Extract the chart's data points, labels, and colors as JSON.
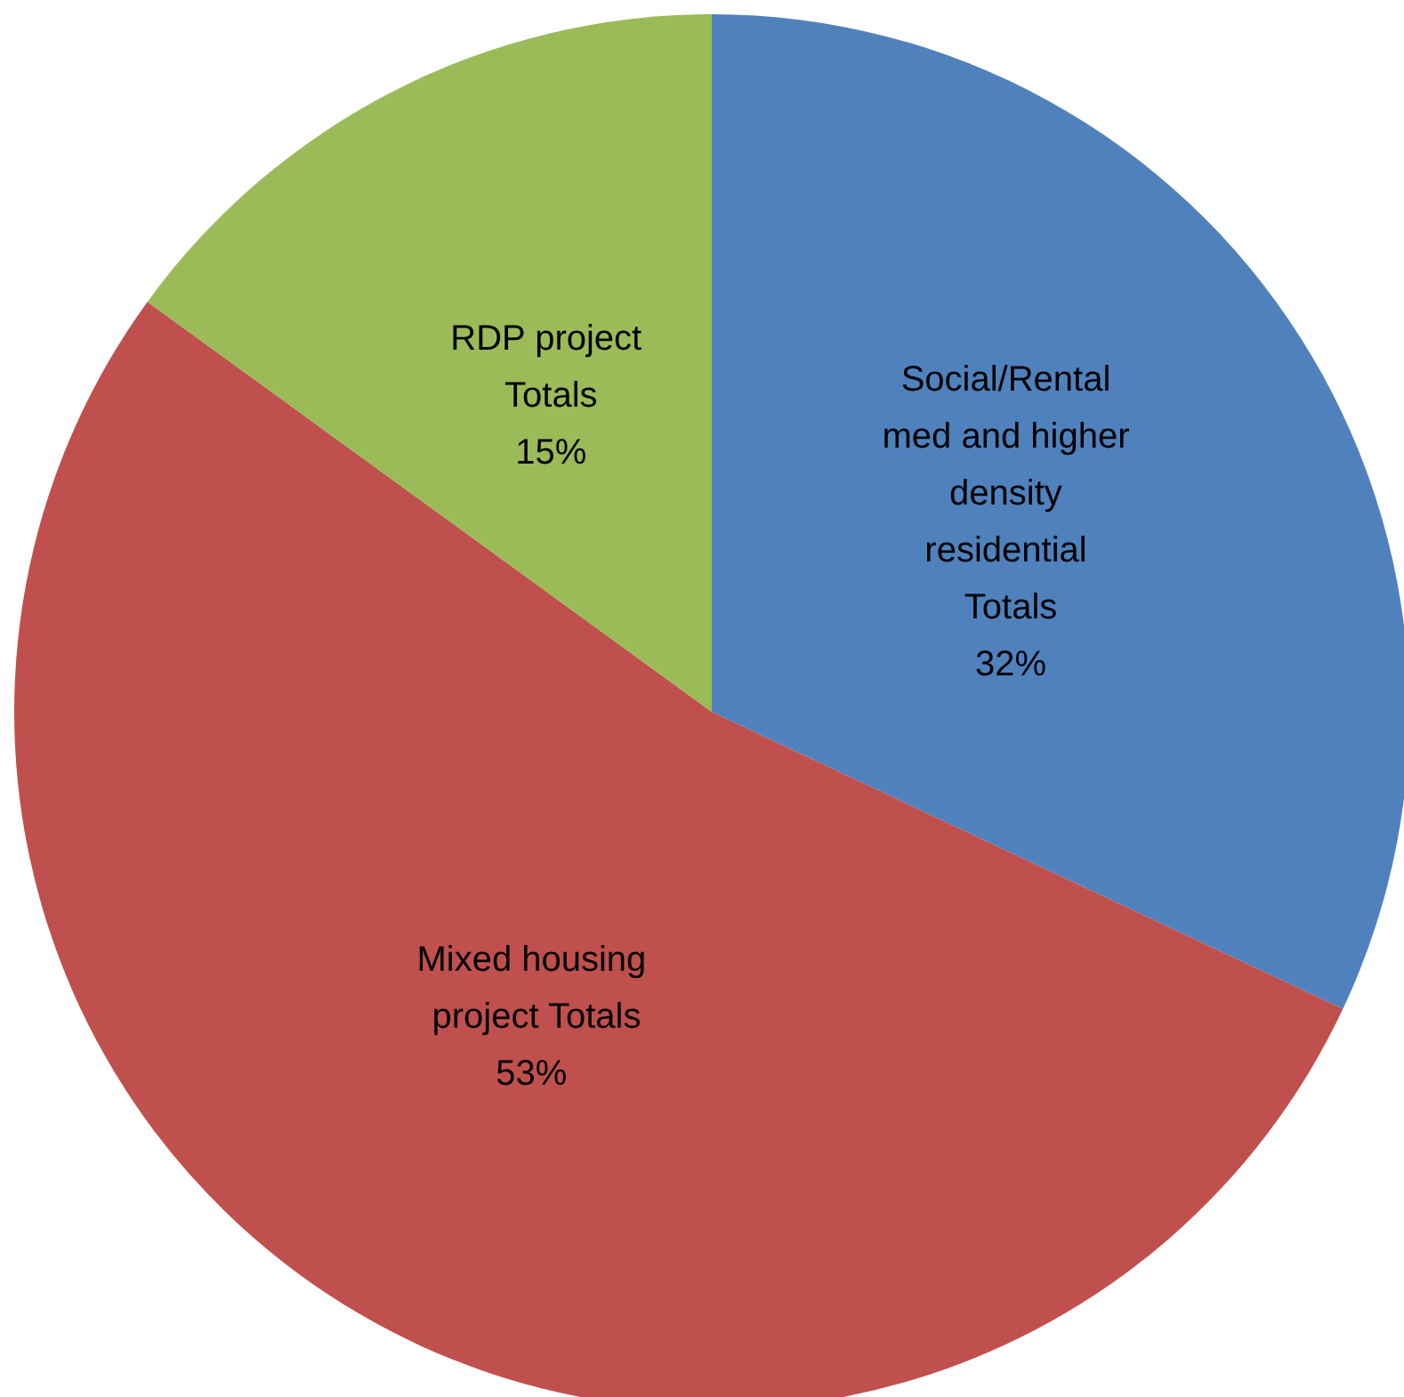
{
  "chart_data": {
    "type": "pie",
    "categories": [
      "Social/Rental med and higher density residential Totals",
      "Mixed housing project Totals",
      "RDP project Totals"
    ],
    "values": [
      32,
      53,
      15
    ],
    "value_labels": [
      "32%",
      "53%",
      "15%"
    ],
    "colors": [
      "#4f81bd",
      "#c0504d",
      "#9bbb59"
    ],
    "legend": false
  }
}
